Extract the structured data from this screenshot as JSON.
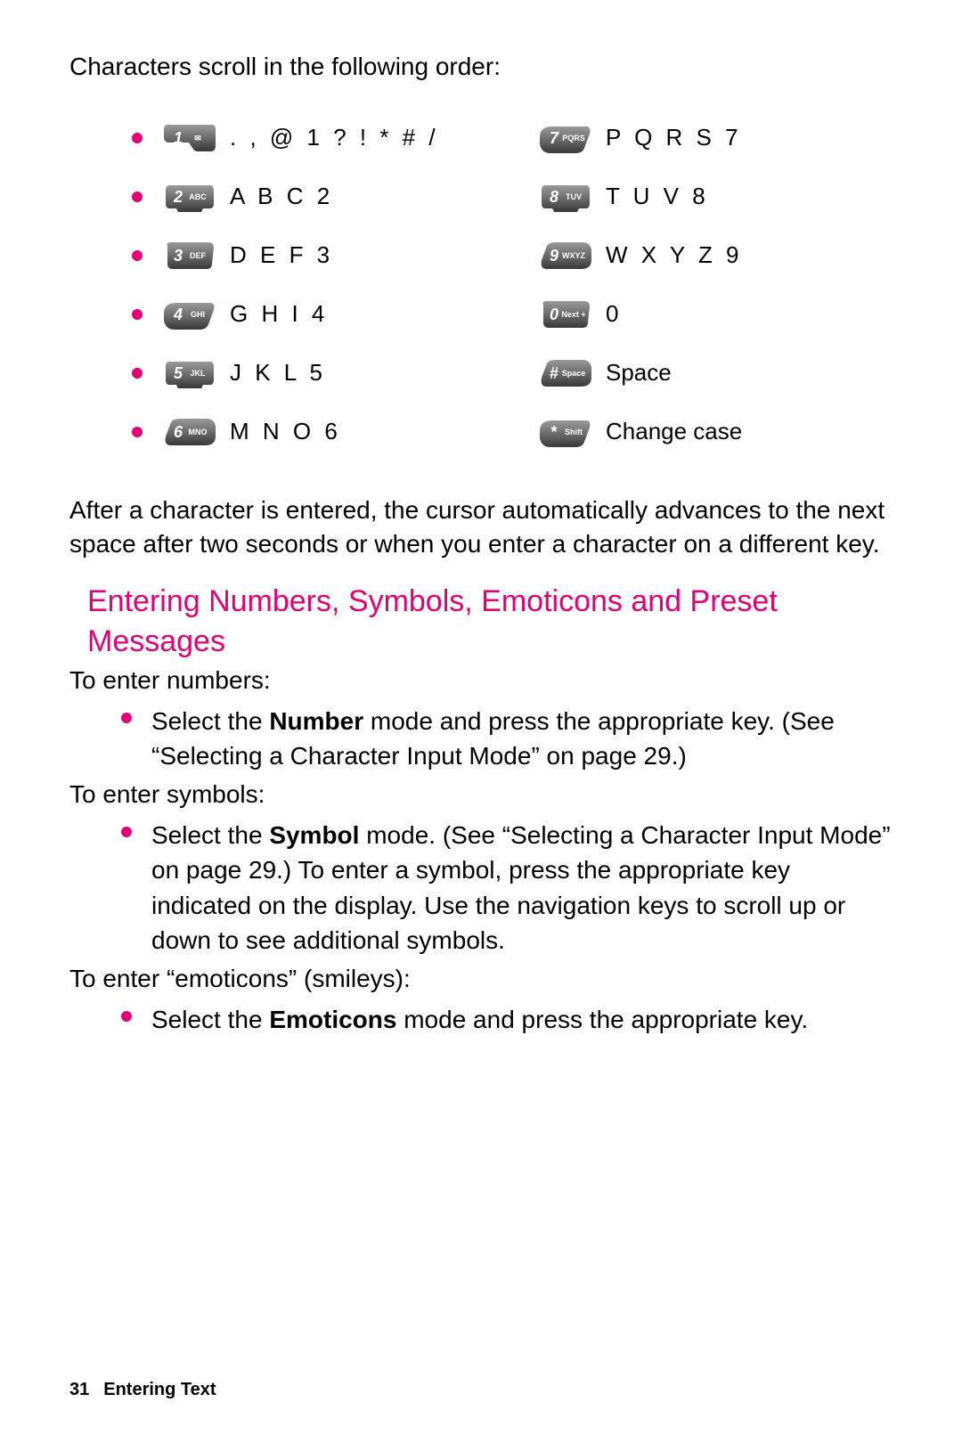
{
  "colors": {
    "accent": "#e20074",
    "text": "#000000",
    "background": "#ffffff",
    "key_grad_top": "#8e8e8e",
    "key_grad_bottom": "#3a3a3a",
    "key_text": "#ffffff"
  },
  "typography": {
    "body_fontsize_pt": 21,
    "heading_fontsize_pt": 26,
    "footer_fontsize_pt": 15,
    "font_family": "Arial"
  },
  "intro_text": "Characters scroll in the following order:",
  "keys_left": [
    {
      "main": "1",
      "sub": "✉",
      "label": ". , @ 1 ? !  * # /",
      "shape": 0
    },
    {
      "main": "2",
      "sub": "ABC",
      "label": "A B C 2",
      "shape": 1
    },
    {
      "main": "3",
      "sub": "DEF",
      "label": "D E F 3",
      "shape": 2
    },
    {
      "main": "4",
      "sub": "GHI",
      "label": "G H I 4",
      "shape": 3
    },
    {
      "main": "5",
      "sub": "JKL",
      "label": "J K L 5",
      "shape": 1
    },
    {
      "main": "6",
      "sub": "MNO",
      "label": "M N O 6",
      "shape": 4
    }
  ],
  "keys_right": [
    {
      "main": "7",
      "sub": "PQRS",
      "label": "P Q R S 7",
      "shape": 3
    },
    {
      "main": "8",
      "sub": "TUV",
      "label": "T U V 8",
      "shape": 1
    },
    {
      "main": "9",
      "sub": "WXYZ",
      "label": "W X Y Z 9",
      "shape": 4
    },
    {
      "main": "0",
      "sub": "Next +",
      "label": "0",
      "shape": 2,
      "tight": true
    },
    {
      "main": "#",
      "sub": "Space",
      "label": "Space",
      "shape": 4,
      "tight": true
    },
    {
      "main": "*",
      "sub": "Shift",
      "label": "Change case",
      "shape": 3,
      "tight": true
    }
  ],
  "after_para": "After a character is entered, the cursor automatically advances to the next space after two seconds or when you enter a character on a different key.",
  "section_heading": "Entering Numbers, Symbols, Emoticons and Preset Messages",
  "enter_numbers_intro": "To enter numbers:",
  "numbers_item": {
    "pre": "Select the ",
    "bold": "Number",
    "post": " mode and press the appropriate key. (See “Selecting a Character Input Mode” on page 29.)"
  },
  "enter_symbols_intro": "To enter symbols:",
  "symbols_item": {
    "pre": "Select the ",
    "bold": "Symbol",
    "post": " mode. (See “Selecting a Character Input Mode” on page 29.) To enter a symbol, press the appropriate key indicated on the display. Use the navigation keys to scroll up or down to see additional symbols."
  },
  "enter_emoticons_intro": "To enter “emoticons” (smileys):",
  "emoticons_item": {
    "pre": "Select the ",
    "bold": "Emoticons",
    "post": " mode and press the appropriate key."
  },
  "footer": {
    "page_number": "31",
    "section_title": "Entering Text"
  }
}
